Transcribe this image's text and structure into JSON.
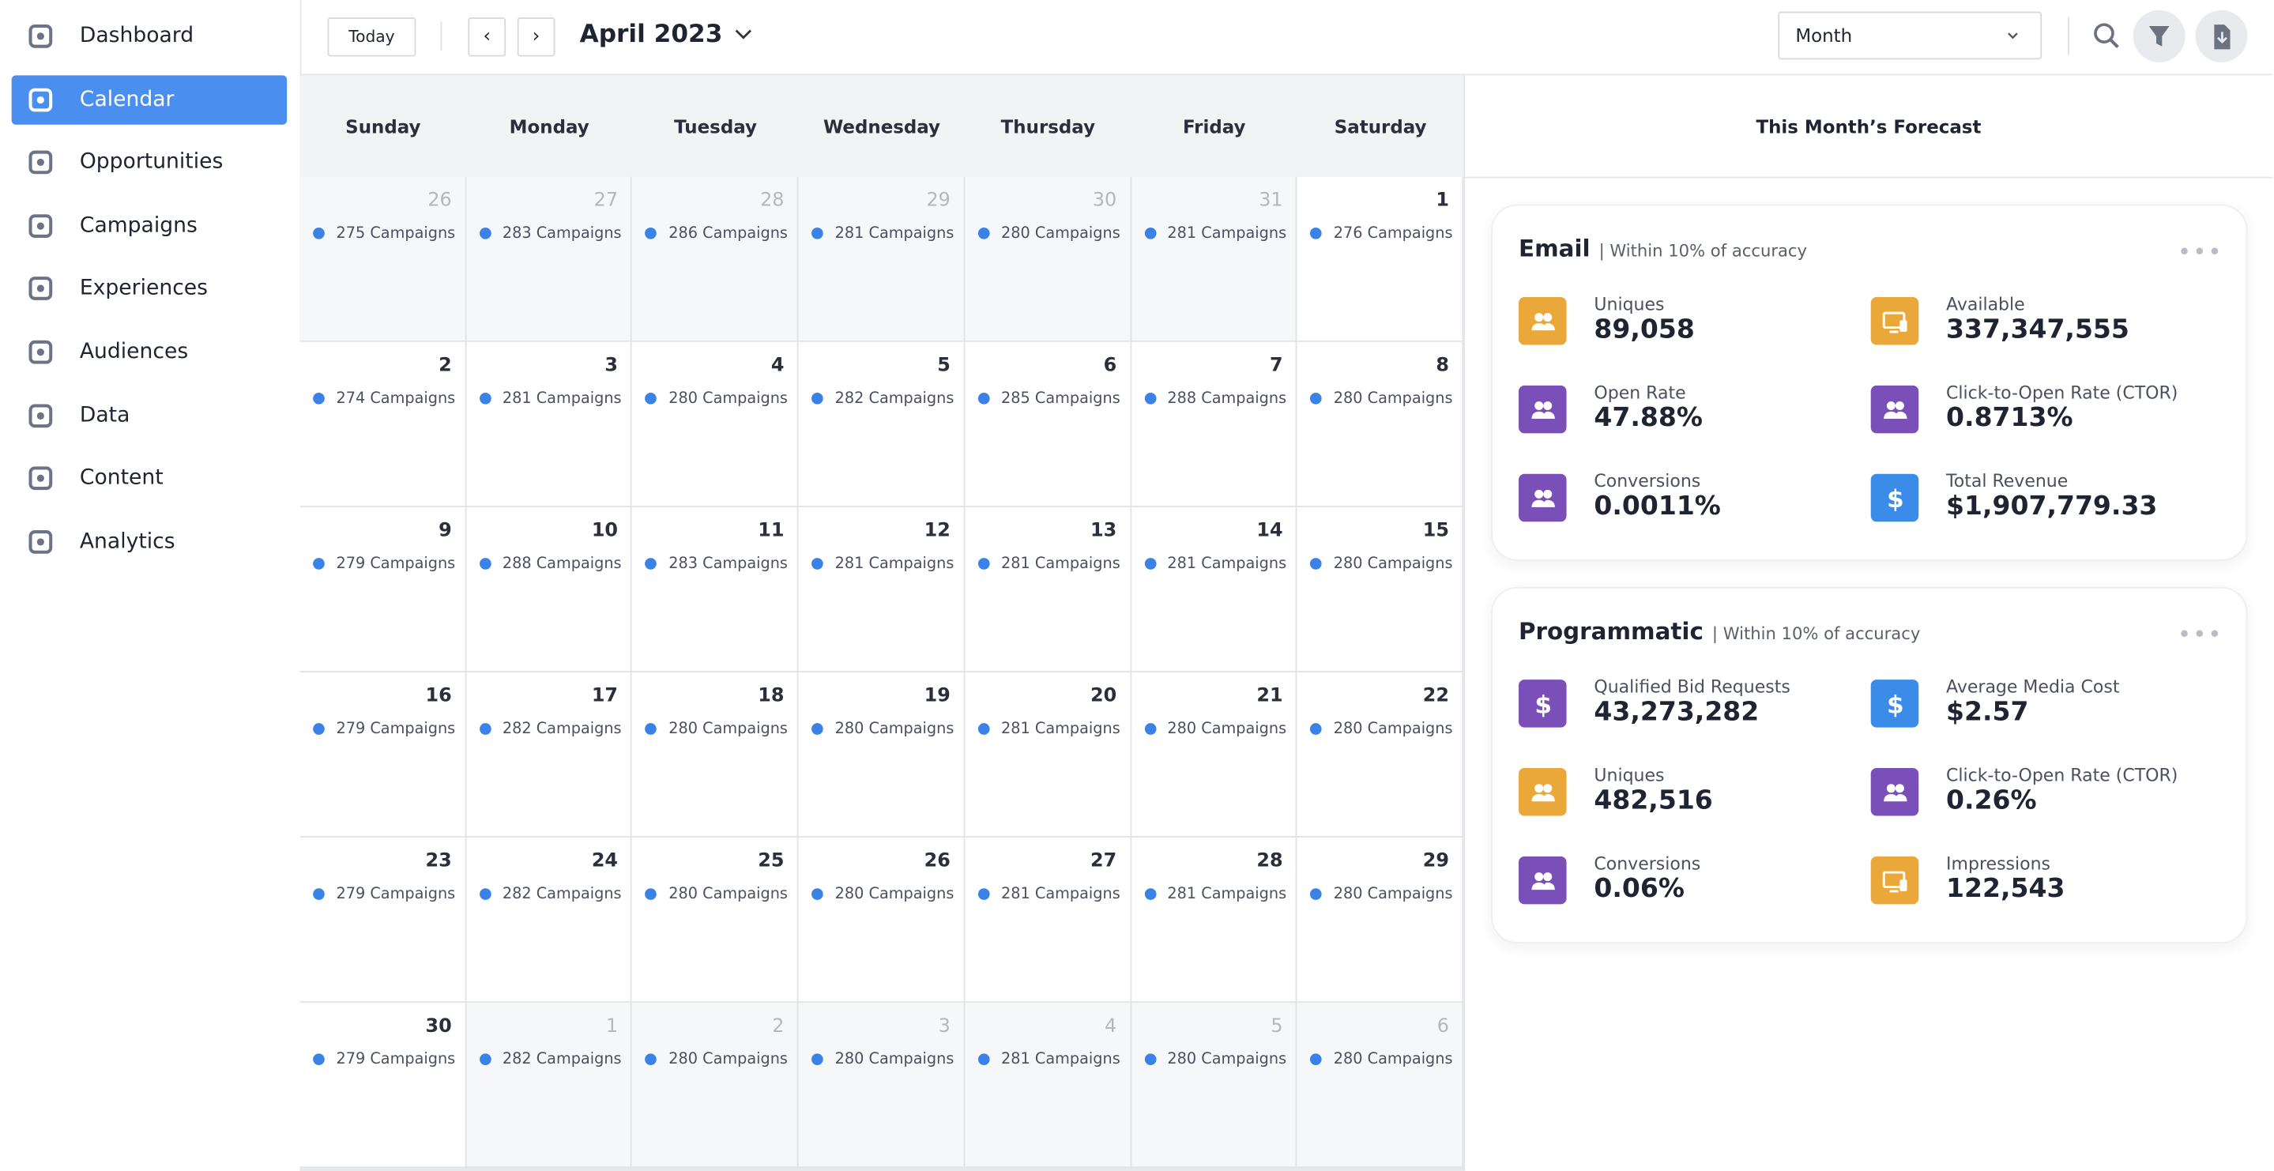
{
  "sidebar": {
    "items": [
      "Dashboard",
      "Calendar",
      "Opportunities",
      "Campaigns",
      "Experiences",
      "Audiences",
      "Data",
      "Content",
      "Analytics"
    ],
    "active": 1
  },
  "toolbar": {
    "today": "Today",
    "month_title": "April 2023",
    "view": "Month"
  },
  "calendar": {
    "weekdays": [
      "Sunday",
      "Monday",
      "Tuesday",
      "Wednesday",
      "Thursday",
      "Friday",
      "Saturday"
    ],
    "weeks": [
      [
        {
          "day": 26,
          "campaigns": "275 Campaigns",
          "outside": true
        },
        {
          "day": 27,
          "campaigns": "283 Campaigns",
          "outside": true
        },
        {
          "day": 28,
          "campaigns": "286 Campaigns",
          "outside": true
        },
        {
          "day": 29,
          "campaigns": "281 Campaigns",
          "outside": true
        },
        {
          "day": 30,
          "campaigns": "280 Campaigns",
          "outside": true
        },
        {
          "day": 31,
          "campaigns": "281 Campaigns",
          "outside": true
        },
        {
          "day": 1,
          "campaigns": "276 Campaigns",
          "outside": false
        }
      ],
      [
        {
          "day": 2,
          "campaigns": "274 Campaigns",
          "outside": false
        },
        {
          "day": 3,
          "campaigns": "281 Campaigns",
          "outside": false
        },
        {
          "day": 4,
          "campaigns": "280 Campaigns",
          "outside": false
        },
        {
          "day": 5,
          "campaigns": "282 Campaigns",
          "outside": false
        },
        {
          "day": 6,
          "campaigns": "285 Campaigns",
          "outside": false
        },
        {
          "day": 7,
          "campaigns": "288 Campaigns",
          "outside": false
        },
        {
          "day": 8,
          "campaigns": "280 Campaigns",
          "outside": false
        }
      ],
      [
        {
          "day": 9,
          "campaigns": "279 Campaigns",
          "outside": false
        },
        {
          "day": 10,
          "campaigns": "288 Campaigns",
          "outside": false
        },
        {
          "day": 11,
          "campaigns": "283 Campaigns",
          "outside": false
        },
        {
          "day": 12,
          "campaigns": "281 Campaigns",
          "outside": false
        },
        {
          "day": 13,
          "campaigns": "281 Campaigns",
          "outside": false
        },
        {
          "day": 14,
          "campaigns": "281 Campaigns",
          "outside": false
        },
        {
          "day": 15,
          "campaigns": "280 Campaigns",
          "outside": false
        }
      ],
      [
        {
          "day": 16,
          "campaigns": "279 Campaigns",
          "outside": false
        },
        {
          "day": 17,
          "campaigns": "282 Campaigns",
          "outside": false
        },
        {
          "day": 18,
          "campaigns": "280 Campaigns",
          "outside": false
        },
        {
          "day": 19,
          "campaigns": "280 Campaigns",
          "outside": false
        },
        {
          "day": 20,
          "campaigns": "281 Campaigns",
          "outside": false
        },
        {
          "day": 21,
          "campaigns": "280 Campaigns",
          "outside": false
        },
        {
          "day": 22,
          "campaigns": "280 Campaigns",
          "outside": false
        }
      ],
      [
        {
          "day": 23,
          "campaigns": "279 Campaigns",
          "outside": false
        },
        {
          "day": 24,
          "campaigns": "282 Campaigns",
          "outside": false
        },
        {
          "day": 25,
          "campaigns": "280 Campaigns",
          "outside": false
        },
        {
          "day": 26,
          "campaigns": "280 Campaigns",
          "outside": false
        },
        {
          "day": 27,
          "campaigns": "281 Campaigns",
          "outside": false
        },
        {
          "day": 28,
          "campaigns": "281 Campaigns",
          "outside": false
        },
        {
          "day": 29,
          "campaigns": "280 Campaigns",
          "outside": false
        }
      ],
      [
        {
          "day": 30,
          "campaigns": "279 Campaigns",
          "outside": false
        },
        {
          "day": 1,
          "campaigns": "282 Campaigns",
          "outside": true
        },
        {
          "day": 2,
          "campaigns": "280 Campaigns",
          "outside": true
        },
        {
          "day": 3,
          "campaigns": "280 Campaigns",
          "outside": true
        },
        {
          "day": 4,
          "campaigns": "281 Campaigns",
          "outside": true
        },
        {
          "day": 5,
          "campaigns": "280 Campaigns",
          "outside": true
        },
        {
          "day": 6,
          "campaigns": "280 Campaigns",
          "outside": true
        }
      ]
    ]
  },
  "forecast": {
    "title": "This Month’s Forecast",
    "cards": [
      {
        "title": "Email",
        "note": "| Within 10% of accuracy",
        "metrics": [
          {
            "label": "Uniques",
            "value": "89,058",
            "color": "#eaa83a",
            "icon": "people"
          },
          {
            "label": "Available",
            "value": "337,347,555",
            "color": "#eaa83a",
            "icon": "monitor"
          },
          {
            "label": "Open Rate",
            "value": "47.88%",
            "color": "#7b4fb8",
            "icon": "people"
          },
          {
            "label": "Click-to-Open Rate (CTOR)",
            "value": "0.8713%",
            "color": "#7b4fb8",
            "icon": "people"
          },
          {
            "label": "Conversions",
            "value": "0.0011%",
            "color": "#7b4fb8",
            "icon": "people"
          },
          {
            "label": "Total Revenue",
            "value": "$1,907,779.33",
            "color": "#3b8be8",
            "icon": "dollar"
          }
        ]
      },
      {
        "title": "Programmatic",
        "note": "| Within 10% of accuracy",
        "metrics": [
          {
            "label": "Qualified Bid Requests",
            "value": "43,273,282",
            "color": "#7b4fb8",
            "icon": "dollar"
          },
          {
            "label": "Average Media Cost",
            "value": "$2.57",
            "color": "#3b8be8",
            "icon": "dollar"
          },
          {
            "label": "Uniques",
            "value": "482,516",
            "color": "#eaa83a",
            "icon": "people"
          },
          {
            "label": "Click-to-Open Rate (CTOR)",
            "value": "0.26%",
            "color": "#7b4fb8",
            "icon": "people"
          },
          {
            "label": "Conversions",
            "value": "0.06%",
            "color": "#7b4fb8",
            "icon": "people"
          },
          {
            "label": "Impressions",
            "value": "122,543",
            "color": "#eaa83a",
            "icon": "monitor"
          }
        ]
      }
    ]
  }
}
